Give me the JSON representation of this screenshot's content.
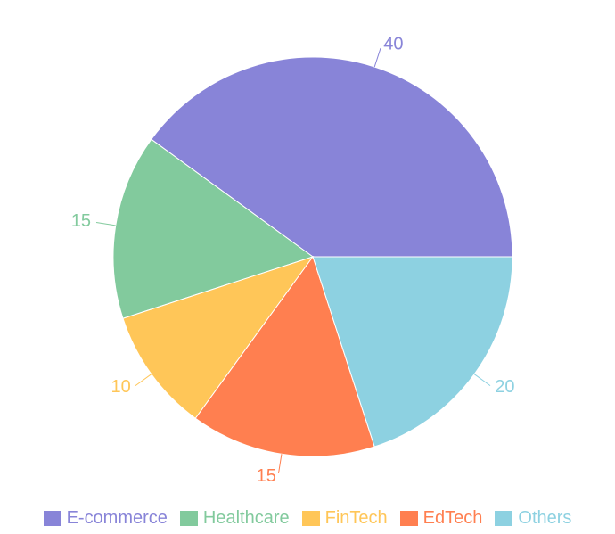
{
  "chart_data": {
    "type": "pie",
    "categories": [
      "E-commerce",
      "Healthcare",
      "FinTech",
      "EdTech",
      "Others"
    ],
    "values": [
      40,
      15,
      10,
      15,
      20
    ],
    "colors": [
      "#8884d8",
      "#82ca9d",
      "#ffc658",
      "#ff7f50",
      "#8dd1e1"
    ],
    "legend": "bottom"
  }
}
